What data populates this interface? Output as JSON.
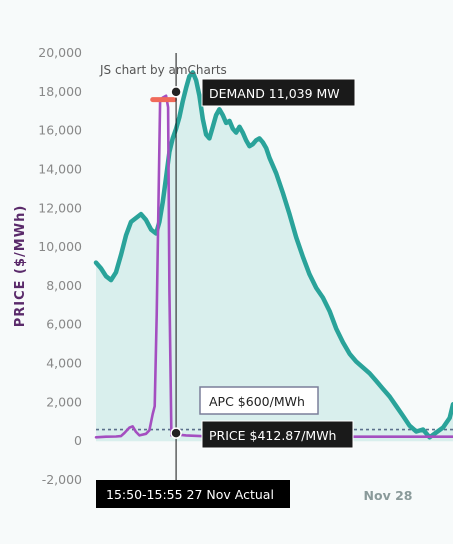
{
  "chart_data": {
    "type": "line",
    "credit": "JS chart by amCharts",
    "ylabel": "PRICE ($/MWh)",
    "ylim": [
      -2000,
      20000
    ],
    "yticks": [
      -2000,
      0,
      2000,
      4000,
      6000,
      8000,
      10000,
      12000,
      14000,
      16000,
      18000,
      20000
    ],
    "ytick_labels": [
      "-2,000",
      "0",
      "2,000",
      "4,000",
      "6,000",
      "8,000",
      "10,000",
      "12,000",
      "14,000",
      "16,000",
      "18,000",
      "20,000"
    ],
    "xticks": [
      {
        "label": "Nov 28"
      }
    ],
    "cursor_label": "15:50-15:55 27 Nov Actual",
    "apc": {
      "value": 600,
      "label": "APC $600/MWh"
    },
    "tooltips": {
      "demand": "DEMAND 11,039 MW",
      "price": "PRICE $412.87/MWh"
    },
    "colors": {
      "demand": "#2aa39a",
      "demand_fill": "#d3ecea",
      "price": "#a44fc0",
      "highlight": "#f06a5a",
      "apc_line": "#5a6f8a"
    },
    "series": [
      {
        "key": "demand",
        "points": [
          [
            0,
            9200
          ],
          [
            1.5,
            8900
          ],
          [
            3,
            8500
          ],
          [
            4.5,
            8300
          ],
          [
            6,
            8700
          ],
          [
            7.5,
            9600
          ],
          [
            9,
            10600
          ],
          [
            10.5,
            11300
          ],
          [
            12,
            11500
          ],
          [
            13.5,
            11700
          ],
          [
            15,
            11400
          ],
          [
            16.5,
            10900
          ],
          [
            18,
            10700
          ],
          [
            19,
            11300
          ],
          [
            20,
            12300
          ],
          [
            21,
            13600
          ],
          [
            22,
            14900
          ],
          [
            23,
            15600
          ],
          [
            24,
            16100
          ],
          [
            25,
            16700
          ],
          [
            26,
            17500
          ],
          [
            27,
            18200
          ],
          [
            28,
            18800
          ],
          [
            29,
            19000
          ],
          [
            30,
            18600
          ],
          [
            31,
            17800
          ],
          [
            32,
            16600
          ],
          [
            33,
            15800
          ],
          [
            34,
            15600
          ],
          [
            35,
            16200
          ],
          [
            36,
            16800
          ],
          [
            37,
            17100
          ],
          [
            38,
            16800
          ],
          [
            39,
            16400
          ],
          [
            40,
            16500
          ],
          [
            41,
            16100
          ],
          [
            42,
            15900
          ],
          [
            43,
            16200
          ],
          [
            44,
            15900
          ],
          [
            45,
            15500
          ],
          [
            46,
            15200
          ],
          [
            47,
            15300
          ],
          [
            48,
            15500
          ],
          [
            49,
            15600
          ],
          [
            50,
            15400
          ],
          [
            51,
            15100
          ],
          [
            52,
            14600
          ],
          [
            54,
            13800
          ],
          [
            56,
            12800
          ],
          [
            58,
            11700
          ],
          [
            60,
            10500
          ],
          [
            62,
            9500
          ],
          [
            64,
            8600
          ],
          [
            66,
            7900
          ],
          [
            68,
            7400
          ],
          [
            70,
            6700
          ],
          [
            72,
            5800
          ],
          [
            74,
            5100
          ],
          [
            76,
            4500
          ],
          [
            78,
            4100
          ],
          [
            80,
            3800
          ],
          [
            82,
            3500
          ],
          [
            84,
            3100
          ],
          [
            86,
            2700
          ],
          [
            88,
            2300
          ],
          [
            90,
            1800
          ],
          [
            92,
            1300
          ],
          [
            94,
            800
          ],
          [
            96,
            500
          ],
          [
            98,
            600
          ],
          [
            100,
            200
          ],
          [
            102,
            450
          ],
          [
            104,
            700
          ],
          [
            106,
            1200
          ],
          [
            107,
            1900
          ]
        ]
      },
      {
        "key": "price",
        "points": [
          [
            0,
            200
          ],
          [
            3,
            230
          ],
          [
            6,
            240
          ],
          [
            7.5,
            260
          ],
          [
            8.5,
            420
          ],
          [
            10,
            700
          ],
          [
            11,
            760
          ],
          [
            12,
            480
          ],
          [
            13,
            300
          ],
          [
            15,
            380
          ],
          [
            16,
            560
          ],
          [
            17,
            1400
          ],
          [
            17.6,
            1800
          ],
          [
            18.2,
            6500
          ],
          [
            18.8,
            13000
          ],
          [
            19.2,
            17500
          ],
          [
            20,
            17700
          ],
          [
            21,
            17800
          ],
          [
            21.6,
            17200
          ],
          [
            22,
            7800
          ],
          [
            22.6,
            300
          ],
          [
            24,
            350
          ],
          [
            27,
            300
          ],
          [
            33,
            250
          ],
          [
            40,
            220
          ],
          [
            55,
            230
          ],
          [
            70,
            230
          ],
          [
            90,
            230
          ],
          [
            107,
            230
          ]
        ]
      }
    ],
    "highlight_segment": {
      "x_start": 17,
      "x_end": 23.5,
      "y": 17600
    },
    "cursor": {
      "x": 24,
      "demand_y": 18000,
      "price_y": 412.87
    }
  }
}
